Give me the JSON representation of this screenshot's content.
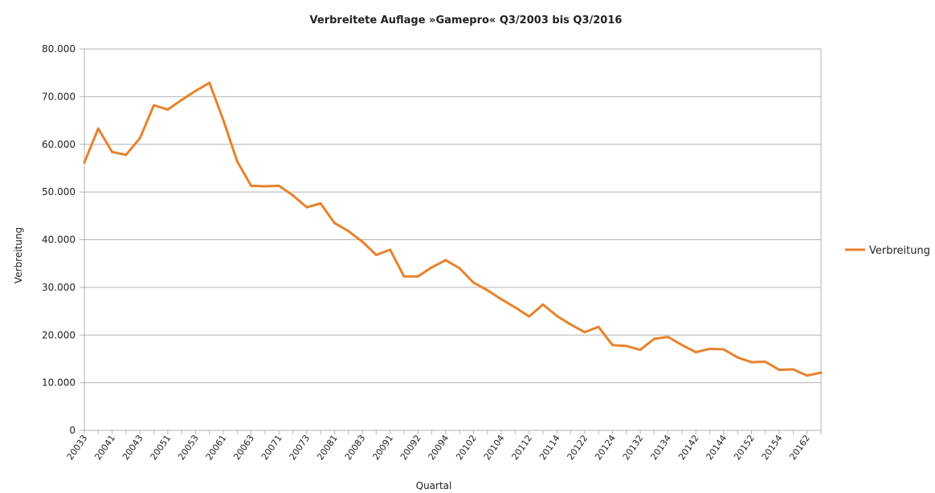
{
  "chart_data": {
    "type": "line",
    "title": "Verbreitete Auflage »Gamepro« Q3/2003 bis Q3/2016",
    "xlabel": "Quartal",
    "ylabel": "Verbreitung",
    "ylim": [
      0,
      80000
    ],
    "y_ticks": [
      0,
      10000,
      20000,
      30000,
      40000,
      50000,
      60000,
      70000,
      80000
    ],
    "y_tick_labels": [
      "0",
      "10.000",
      "20.000",
      "30.000",
      "40.000",
      "50.000",
      "60.000",
      "70.000",
      "80.000"
    ],
    "grid": true,
    "legend_position": "right",
    "x_tick_labels": [
      "20033",
      "20041",
      "20043",
      "20051",
      "20053",
      "20061",
      "20063",
      "20071",
      "20073",
      "20081",
      "20083",
      "20091",
      "20092",
      "20094",
      "20102",
      "20104",
      "20112",
      "20114",
      "20122",
      "20124",
      "20132",
      "20134",
      "20142",
      "20144",
      "20152",
      "20154",
      "20162"
    ],
    "series": [
      {
        "name": "Verbreitung",
        "color": "#e8822c",
        "values": [
          56200,
          63300,
          58400,
          57800,
          61300,
          68200,
          67300,
          69300,
          71200,
          72900,
          65100,
          56400,
          51300,
          51200,
          51300,
          49300,
          46800,
          47600,
          43500,
          41800,
          39600,
          36800,
          37900,
          32300,
          32300,
          34200,
          35700,
          34000,
          31000,
          29400,
          27500,
          25800,
          23900,
          26400,
          24000,
          22200,
          20600,
          21700,
          17900,
          17700,
          16900,
          19200,
          19600,
          17900,
          16400,
          17100,
          17000,
          15300,
          14300,
          14400,
          12700,
          12800,
          11500,
          12100
        ]
      }
    ]
  }
}
